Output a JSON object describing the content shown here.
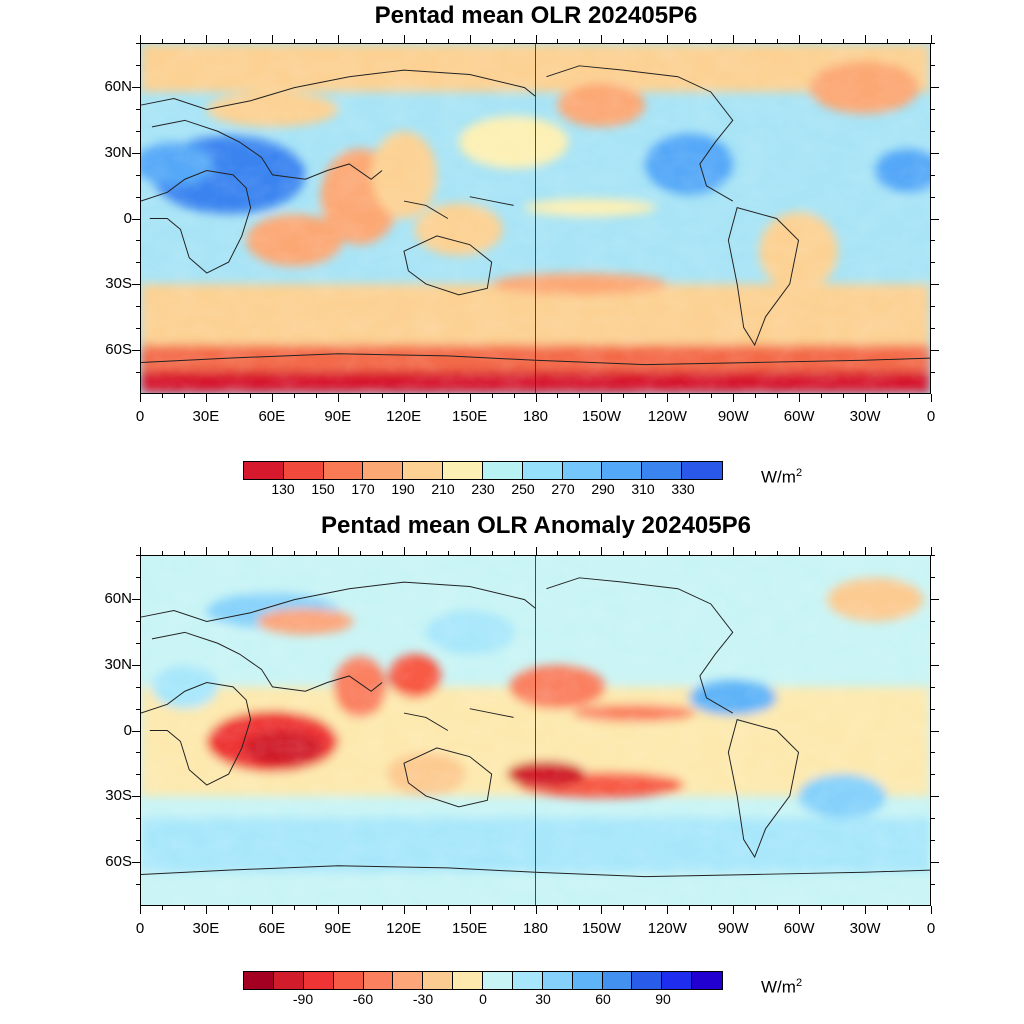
{
  "top_panel": {
    "title": "Pentad mean OLR 202405P6",
    "colorbar": {
      "colors": [
        "#d7192e",
        "#f14a3c",
        "#fb7a56",
        "#fca874",
        "#fcd193",
        "#fdf0b4",
        "#b8f2f2",
        "#96e0fb",
        "#75c7fb",
        "#54a8f8",
        "#3a84f0",
        "#2a59ea"
      ],
      "labels": [
        "130",
        "150",
        "170",
        "190",
        "210",
        "230",
        "250",
        "270",
        "290",
        "310",
        "330"
      ],
      "unit": "W/m",
      "unit_sup": "2"
    }
  },
  "bottom_panel": {
    "title": "Pentad mean OLR Anomaly 202405P6",
    "colorbar": {
      "colors": [
        "#a30022",
        "#d01c2b",
        "#ee3434",
        "#f75a45",
        "#fa8060",
        "#fca67a",
        "#fccb92",
        "#fde9ae",
        "#c9f4f5",
        "#a8e7fb",
        "#85d1fb",
        "#5fb4f8",
        "#4290f0",
        "#2a5cea",
        "#1f2dee",
        "#2200d0"
      ],
      "labels": [
        "-90",
        "-60",
        "-30",
        "0",
        "30",
        "60",
        "90"
      ],
      "unit": "W/m",
      "unit_sup": "2"
    }
  },
  "axes": {
    "lat_labels": [
      "60N",
      "30N",
      "0",
      "30S",
      "60S"
    ],
    "lon_labels": [
      "0",
      "30E",
      "60E",
      "90E",
      "120E",
      "150E",
      "180",
      "150W",
      "120W",
      "90W",
      "60W",
      "30W",
      "0"
    ]
  },
  "chart_data": [
    {
      "type": "heatmap",
      "title": "Pentad mean OLR 202405P6",
      "xlim": [
        0,
        360
      ],
      "ylim": [
        -80,
        80
      ],
      "x_ticks": [
        "0",
        "30E",
        "60E",
        "90E",
        "120E",
        "150E",
        "180",
        "150W",
        "120W",
        "90W",
        "60W",
        "30W",
        "0"
      ],
      "y_ticks": [
        "60N",
        "30N",
        "0",
        "30S",
        "60S"
      ],
      "color_levels": [
        130,
        150,
        170,
        190,
        210,
        230,
        250,
        270,
        290,
        310,
        330
      ],
      "unit": "W/m2"
    },
    {
      "type": "heatmap",
      "title": "Pentad mean OLR Anomaly 202405P6",
      "xlim": [
        0,
        360
      ],
      "ylim": [
        -80,
        80
      ],
      "x_ticks": [
        "0",
        "30E",
        "60E",
        "90E",
        "120E",
        "150E",
        "180",
        "150W",
        "120W",
        "90W",
        "60W",
        "30W",
        "0"
      ],
      "y_ticks": [
        "60N",
        "30N",
        "0",
        "30S",
        "60S"
      ],
      "color_levels": [
        -90,
        -60,
        -30,
        0,
        30,
        60,
        90
      ],
      "unit": "W/m2"
    }
  ]
}
